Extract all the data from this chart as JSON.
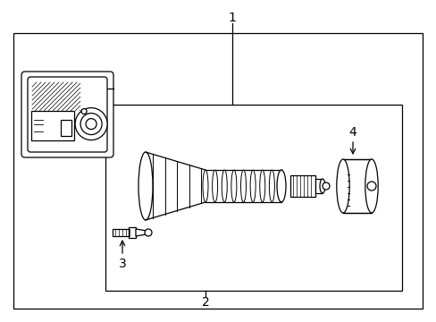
{
  "bg_color": "#ffffff",
  "line_color": "#000000",
  "fig_width": 4.89,
  "fig_height": 3.6,
  "dpi": 100,
  "label_1": "1",
  "label_2": "2",
  "label_3": "3",
  "label_4": "4",
  "font_size": 10
}
